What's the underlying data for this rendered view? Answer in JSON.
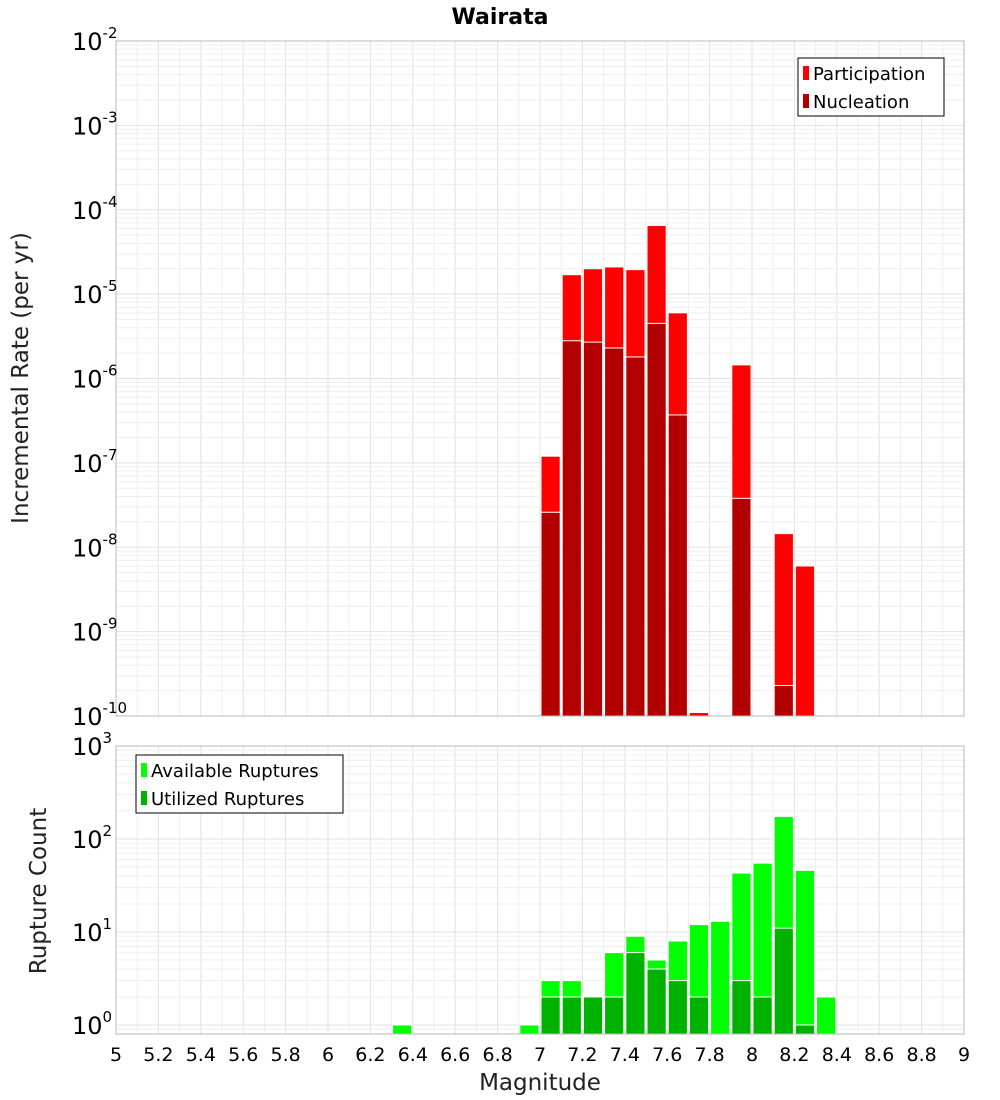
{
  "chart_data": [
    {
      "type": "bar",
      "title": "Wairata",
      "ylabel": "Incremental Rate (per yr)",
      "xlabel": "",
      "x_range": [
        5,
        9
      ],
      "y_scale": "log",
      "ylim": [
        1e-10,
        0.01
      ],
      "y_tick_exponents": [
        "-2",
        "-3",
        "-4",
        "-5",
        "-6",
        "-7",
        "-8",
        "-9",
        "-10"
      ],
      "y_tick_base": "10",
      "bin_width": 0.1,
      "legend": {
        "placement": "top-right",
        "entries": [
          {
            "name": "Participation",
            "color": "#ff0000"
          },
          {
            "name": "Nucleation",
            "color": "#b20000"
          }
        ]
      },
      "series": [
        {
          "name": "Participation",
          "color": "#ff0000",
          "x": [
            7.05,
            7.15,
            7.25,
            7.35,
            7.45,
            7.55,
            7.65,
            7.75,
            7.95,
            8.15,
            8.25
          ],
          "values": [
            1.2e-07,
            1.7e-05,
            2e-05,
            2.1e-05,
            1.95e-05,
            6.5e-05,
            6e-06,
            1.1e-10,
            1.45e-06,
            1.45e-08,
            6e-09
          ]
        },
        {
          "name": "Nucleation",
          "color": "#b20000",
          "x": [
            7.05,
            7.15,
            7.25,
            7.35,
            7.45,
            7.55,
            7.65,
            7.95,
            8.15
          ],
          "values": [
            2.6e-08,
            2.8e-06,
            2.7e-06,
            2.3e-06,
            1.8e-06,
            4.5e-06,
            3.7e-07,
            3.8e-08,
            2.3e-10
          ]
        }
      ]
    },
    {
      "type": "bar",
      "title": "",
      "ylabel": "Rupture Count",
      "xlabel": "Magnitude",
      "x_range": [
        5,
        9
      ],
      "x_ticks": [
        "5",
        "5.2",
        "5.4",
        "5.6",
        "5.8",
        "6",
        "6.2",
        "6.4",
        "6.6",
        "6.8",
        "7",
        "7.2",
        "7.4",
        "7.6",
        "7.8",
        "8",
        "8.2",
        "8.4",
        "8.6",
        "8.8",
        "9"
      ],
      "y_scale": "log",
      "ylim": [
        0.8,
        1000
      ],
      "y_tick_exponents": [
        "3",
        "2",
        "1",
        "0"
      ],
      "y_tick_base": "10",
      "bin_width": 0.1,
      "legend": {
        "placement": "top-left",
        "entries": [
          {
            "name": "Available Ruptures",
            "color": "#00ff00"
          },
          {
            "name": "Utilized Ruptures",
            "color": "#00b200"
          }
        ]
      },
      "series": [
        {
          "name": "Available Ruptures",
          "color": "#00ff00",
          "x": [
            6.35,
            6.95,
            7.05,
            7.15,
            7.25,
            7.35,
            7.45,
            7.55,
            7.65,
            7.75,
            7.85,
            7.95,
            8.05,
            8.15,
            8.25,
            8.35
          ],
          "values": [
            1,
            1,
            3,
            3,
            2,
            6,
            9,
            5,
            8,
            12,
            13,
            43,
            55,
            175,
            46,
            2
          ]
        },
        {
          "name": "Utilized Ruptures",
          "color": "#00b200",
          "x": [
            7.05,
            7.15,
            7.25,
            7.35,
            7.45,
            7.55,
            7.65,
            7.75,
            7.95,
            8.05,
            8.15,
            8.25
          ],
          "values": [
            2,
            2,
            2,
            2,
            6,
            4,
            3,
            2,
            3,
            2,
            11,
            1
          ]
        }
      ]
    }
  ]
}
